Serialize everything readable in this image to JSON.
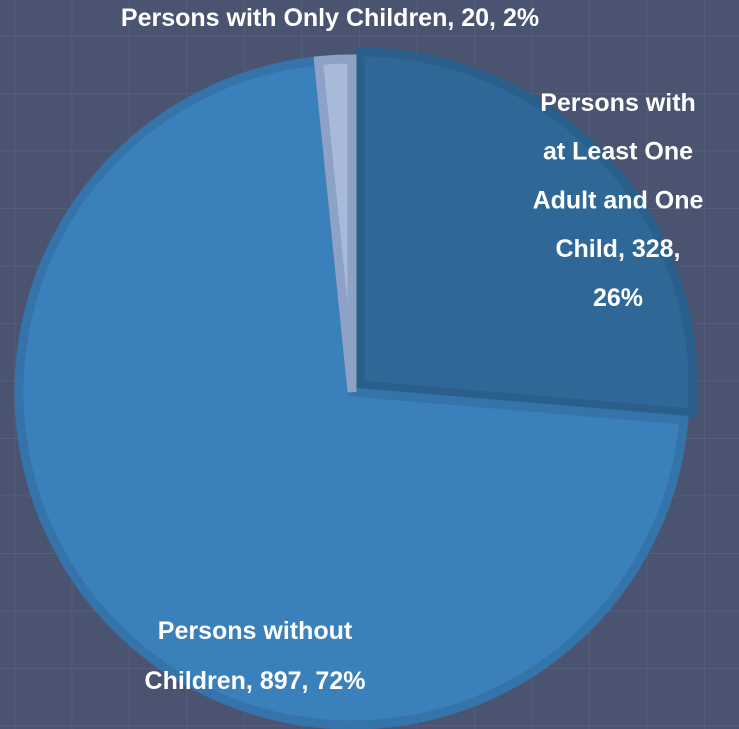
{
  "chart_data": {
    "type": "pie",
    "values": [
      328,
      897,
      20
    ],
    "value_labels": [
      "Persons with at Least One Adult and One Child, 328, 26%",
      "Persons without Children, 897, 72%",
      "Persons with Only Children, 20, 2%"
    ],
    "colors": [
      "#2f6896",
      "#3a80bb",
      "#a9b9d9"
    ]
  }
}
